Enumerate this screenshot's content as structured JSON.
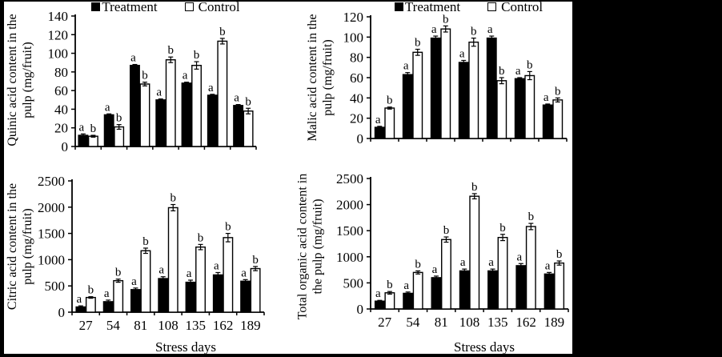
{
  "page": {
    "background": "#000000",
    "paper": "#ffffff"
  },
  "legend": {
    "treatment": "Treatment",
    "control": "Control",
    "treatment_color": "#000000",
    "control_color": "#ffffff"
  },
  "x_axis": {
    "title": "Stress days",
    "categories": [
      "27",
      "54",
      "81",
      "108",
      "135",
      "162",
      "189"
    ]
  },
  "chart_data": [
    {
      "id": "quinic",
      "type": "bar",
      "title": "Quinic acid content in the pulp (mg/fruit)",
      "ylim": [
        0,
        140
      ],
      "yticks": [
        0,
        20,
        40,
        60,
        80,
        100,
        120,
        140
      ],
      "categories": [
        "27",
        "54",
        "81",
        "108",
        "135",
        "162",
        "189"
      ],
      "legend_position": "top",
      "grid": false,
      "series": [
        {
          "name": "Treatment",
          "color": "#000000",
          "values": [
            12,
            34,
            87,
            50,
            68,
            55,
            44
          ],
          "errors": [
            1.5,
            1,
            1,
            1,
            1,
            1,
            1
          ],
          "sig": [
            "a",
            "a",
            "a",
            "a",
            "a",
            "a",
            "a"
          ]
        },
        {
          "name": "Control",
          "color": "#ffffff",
          "values": [
            11,
            21,
            67,
            93,
            87,
            113,
            38
          ],
          "errors": [
            1,
            2.5,
            2,
            3,
            4,
            3,
            3
          ],
          "sig": [
            "b",
            "b",
            "b",
            "b",
            "b",
            "b",
            "b"
          ]
        }
      ]
    },
    {
      "id": "malic",
      "type": "bar",
      "title": "Malic acid content in the pulp (mg/fruit)",
      "ylim": [
        0,
        120
      ],
      "yticks": [
        0,
        20,
        40,
        60,
        80,
        100,
        120
      ],
      "categories": [
        "27",
        "54",
        "81",
        "108",
        "135",
        "162",
        "189"
      ],
      "legend_position": "top",
      "grid": false,
      "series": [
        {
          "name": "Treatment",
          "color": "#000000",
          "values": [
            11,
            63,
            99,
            75,
            99,
            59,
            33
          ],
          "errors": [
            1,
            2,
            2,
            2,
            2,
            1,
            1
          ],
          "sig": [
            "a",
            "a",
            "a",
            "a",
            "a",
            "a",
            "a"
          ]
        },
        {
          "name": "Control",
          "color": "#ffffff",
          "values": [
            30,
            85,
            108,
            95,
            57,
            62,
            38
          ],
          "errors": [
            1,
            3,
            3,
            4,
            3,
            4,
            2
          ],
          "sig": [
            "b",
            "b",
            "b",
            "b",
            "b",
            "b",
            "b"
          ]
        }
      ]
    },
    {
      "id": "citric",
      "type": "bar",
      "title": "Citric acid content in the pulp (mg/fruit)",
      "ylim": [
        0,
        2500
      ],
      "yticks": [
        0,
        500,
        1000,
        1500,
        2000,
        2500
      ],
      "categories": [
        "27",
        "54",
        "81",
        "108",
        "135",
        "162",
        "189"
      ],
      "legend_position": "none",
      "grid": false,
      "series": [
        {
          "name": "Treatment",
          "color": "#000000",
          "values": [
            100,
            200,
            430,
            640,
            570,
            710,
            590
          ],
          "errors": [
            20,
            30,
            30,
            35,
            40,
            45,
            30
          ],
          "sig": [
            "a",
            "a",
            "a",
            "a",
            "a",
            "a",
            "a"
          ]
        },
        {
          "name": "Control",
          "color": "#ffffff",
          "values": [
            280,
            600,
            1170,
            1990,
            1240,
            1420,
            830
          ],
          "errors": [
            15,
            30,
            50,
            60,
            50,
            80,
            40
          ],
          "sig": [
            "b",
            "b",
            "b",
            "b",
            "b",
            "b",
            "b"
          ]
        }
      ]
    },
    {
      "id": "total",
      "type": "bar",
      "title": "Total organic acid content in the pulp (mg/fruit)",
      "ylim": [
        0,
        2500
      ],
      "yticks": [
        0,
        500,
        1000,
        1500,
        2000,
        2500
      ],
      "categories": [
        "27",
        "54",
        "81",
        "108",
        "135",
        "162",
        "189"
      ],
      "legend_position": "none",
      "grid": false,
      "series": [
        {
          "name": "Treatment",
          "color": "#000000",
          "values": [
            150,
            300,
            600,
            730,
            730,
            830,
            670
          ],
          "errors": [
            15,
            25,
            30,
            35,
            35,
            40,
            30
          ],
          "sig": [
            "a",
            "a",
            "a",
            "a",
            "a",
            "a",
            "a"
          ]
        },
        {
          "name": "Control",
          "color": "#ffffff",
          "values": [
            310,
            700,
            1330,
            2160,
            1370,
            1580,
            880
          ],
          "errors": [
            25,
            30,
            50,
            50,
            60,
            60,
            40
          ],
          "sig": [
            "b",
            "b",
            "b",
            "b",
            "b",
            "b",
            "b"
          ]
        }
      ]
    }
  ]
}
